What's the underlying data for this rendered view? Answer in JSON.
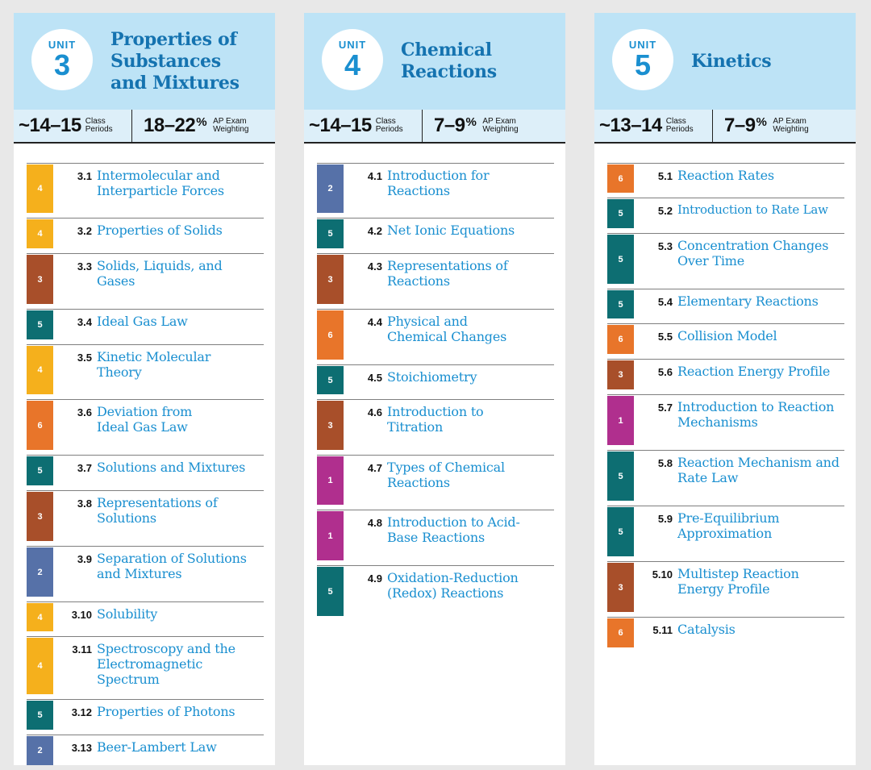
{
  "units": [
    {
      "unit_label": "UNIT",
      "unit_number": "3",
      "title": "Properties of Substances and Mixtures",
      "class_periods": "~14–15",
      "class_periods_label": [
        "Class",
        "Periods"
      ],
      "weighting": "18–22",
      "weighting_unit": "%",
      "weighting_label": [
        "AP Exam",
        "Weighting"
      ],
      "topics": [
        {
          "level": "4",
          "number": "3.1",
          "name": "Intermolecular and Interparticle Forces",
          "color": "#f5b01c"
        },
        {
          "level": "4",
          "number": "3.2",
          "name": "Properties of Solids",
          "color": "#f5b01c"
        },
        {
          "level": "3",
          "number": "3.3",
          "name": "Solids, Liquids, and Gases",
          "color": "#a84f2a"
        },
        {
          "level": "5",
          "number": "3.4",
          "name": "Ideal Gas Law",
          "color": "#0d6e72"
        },
        {
          "level": "4",
          "number": "3.5",
          "name": "Kinetic Molecular Theory",
          "color": "#f5b01c"
        },
        {
          "level": "6",
          "number": "3.6",
          "name": "Deviation from Ideal Gas Law",
          "color": "#e8752a"
        },
        {
          "level": "5",
          "number": "3.7",
          "name": "Solutions and Mixtures",
          "color": "#0d6e72"
        },
        {
          "level": "3",
          "number": "3.8",
          "name": "Representations of Solutions",
          "color": "#a84f2a"
        },
        {
          "level": "2",
          "number": "3.9",
          "name": "Separation of Solutions and Mixtures",
          "color": "#5671a8"
        },
        {
          "level": "4",
          "number": "3.10",
          "name": "Solubility",
          "color": "#f5b01c"
        },
        {
          "level": "4",
          "number": "3.11",
          "name": "Spectroscopy and the Electromagnetic Spectrum",
          "color": "#f5b01c"
        },
        {
          "level": "5",
          "number": "3.12",
          "name": "Properties of Photons",
          "color": "#0d6e72"
        },
        {
          "level": "2",
          "number": "3.13",
          "name": "Beer-Lambert Law",
          "color": "#5671a8"
        }
      ]
    },
    {
      "unit_label": "UNIT",
      "unit_number": "4",
      "title": "Chemical Reactions",
      "class_periods": "~14–15",
      "class_periods_label": [
        "Class",
        "Periods"
      ],
      "weighting": "7–9",
      "weighting_unit": "%",
      "weighting_label": [
        "AP Exam",
        "Weighting"
      ],
      "topics": [
        {
          "level": "2",
          "number": "4.1",
          "name": "Introduction for Reactions",
          "color": "#5671a8"
        },
        {
          "level": "5",
          "number": "4.2",
          "name": "Net Ionic Equations",
          "color": "#0d6e72"
        },
        {
          "level": "3",
          "number": "4.3",
          "name": "Representations of Reactions",
          "color": "#a84f2a"
        },
        {
          "level": "6",
          "number": "4.4",
          "name": "Physical and Chemical Changes",
          "color": "#e8752a"
        },
        {
          "level": "5",
          "number": "4.5",
          "name": "Stoichiometry",
          "color": "#0d6e72"
        },
        {
          "level": "3",
          "number": "4.6",
          "name": "Introduction to Titration",
          "color": "#a84f2a"
        },
        {
          "level": "1",
          "number": "4.7",
          "name": "Types of Chemical Reactions",
          "color": "#b02f8e"
        },
        {
          "level": "1",
          "number": "4.8",
          "name": "Introduction to Acid-Base Reactions",
          "color": "#b02f8e"
        },
        {
          "level": "5",
          "number": "4.9",
          "name": "Oxidation-Reduction (Redox) Reactions",
          "color": "#0d6e72"
        }
      ]
    },
    {
      "unit_label": "UNIT",
      "unit_number": "5",
      "title": "Kinetics",
      "class_periods": "~13–14",
      "class_periods_label": [
        "Class",
        "Periods"
      ],
      "weighting": "7–9",
      "weighting_unit": "%",
      "weighting_label": [
        "AP Exam",
        "Weighting"
      ],
      "topics": [
        {
          "level": "6",
          "number": "5.1",
          "name": "Reaction Rates",
          "color": "#e8752a"
        },
        {
          "level": "5",
          "number": "5.2",
          "name": "Introduction to Rate Law",
          "color": "#0d6e72"
        },
        {
          "level": "5",
          "number": "5.3",
          "name": "Concentration Changes Over Time",
          "color": "#0d6e72"
        },
        {
          "level": "5",
          "number": "5.4",
          "name": "Elementary Reactions",
          "color": "#0d6e72"
        },
        {
          "level": "6",
          "number": "5.5",
          "name": "Collision Model",
          "color": "#e8752a"
        },
        {
          "level": "3",
          "number": "5.6",
          "name": "Reaction Energy Profile",
          "color": "#a84f2a"
        },
        {
          "level": "1",
          "number": "5.7",
          "name": "Introduction to Reaction Mechanisms",
          "color": "#b02f8e"
        },
        {
          "level": "5",
          "number": "5.8",
          "name": "Reaction Mechanism and Rate Law",
          "color": "#0d6e72"
        },
        {
          "level": "5",
          "number": "5.9",
          "name": "Pre-Equilibrium Approximation",
          "color": "#0d6e72"
        },
        {
          "level": "3",
          "number": "5.10",
          "name": "Multistep Reaction Energy Profile",
          "color": "#a84f2a"
        },
        {
          "level": "6",
          "number": "5.11",
          "name": "Catalysis",
          "color": "#e8752a"
        }
      ]
    }
  ]
}
